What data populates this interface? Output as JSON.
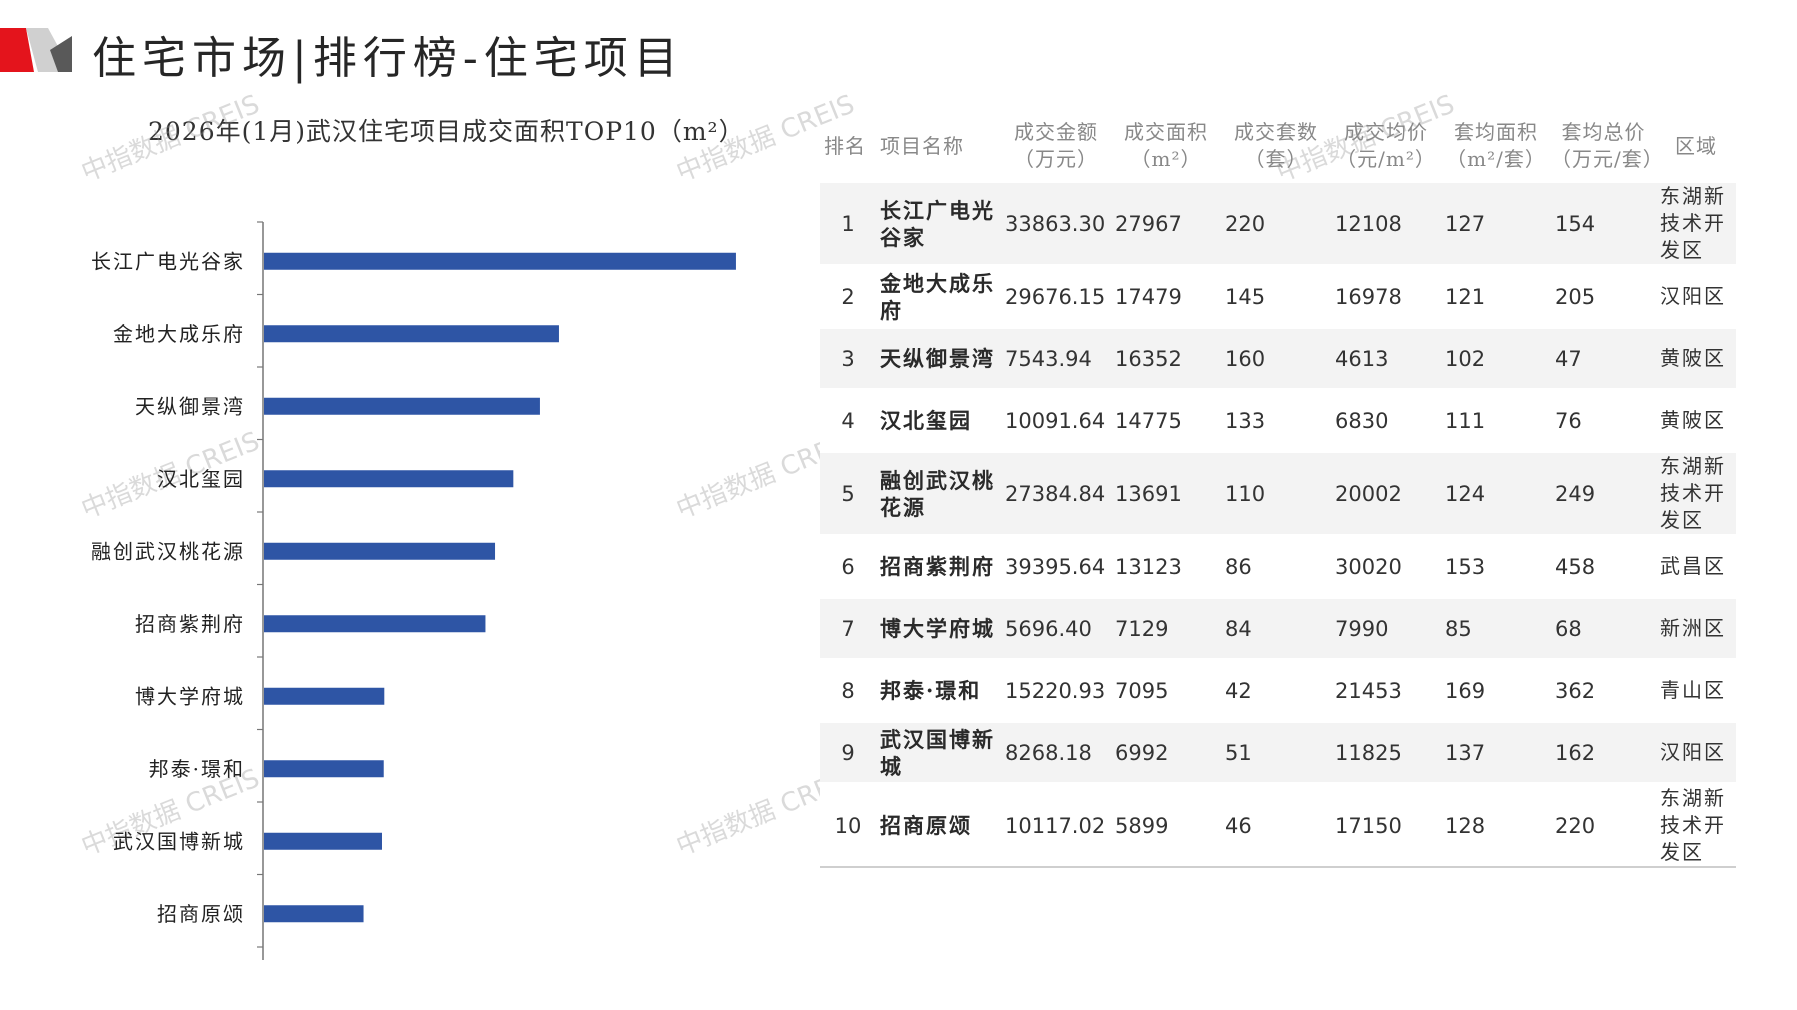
{
  "header": {
    "title": "住宅市场|排行榜-住宅项目",
    "logo_colors": [
      "#e4141c",
      "#9b9b9b",
      "#595959"
    ]
  },
  "watermark": {
    "text": "中指数据 CREIS"
  },
  "chart_data": {
    "type": "bar",
    "orientation": "horizontal",
    "title": "2026年(1月)武汉住宅项目成交面积TOP10（m²）",
    "categories": [
      "长江广电光谷家",
      "金地大成乐府",
      "天纵御景湾",
      "汉北玺园",
      "融创武汉桃花源",
      "招商紫荆府",
      "博大学府城",
      "邦泰·璟和",
      "武汉国博新城",
      "招商原颂"
    ],
    "values": [
      27967,
      17479,
      16352,
      14775,
      13691,
      13123,
      7129,
      7095,
      6992,
      5899
    ],
    "xlim": [
      0,
      32000
    ],
    "grid": false,
    "bar_color": "#2e55a5"
  },
  "table": {
    "headers": {
      "rank": "排名",
      "name": "项目名称",
      "amount": [
        "成交金额",
        "（万元）"
      ],
      "area": [
        "成交面积",
        "（m²）"
      ],
      "units": [
        "成交套数",
        "（套）"
      ],
      "price": [
        "成交均价",
        "（元/m²）"
      ],
      "avg_area": [
        "套均面积",
        "（m²/套）"
      ],
      "avg_total": [
        "套均总价",
        "（万元/套）"
      ],
      "district": "区域"
    },
    "rows": [
      {
        "rank": "1",
        "name": "长江广电光谷家",
        "amount": "33863.30",
        "area": "27967",
        "units": "220",
        "price": "12108",
        "avg_area": "127",
        "avg_total": "154",
        "district": "东湖新技术开发区"
      },
      {
        "rank": "2",
        "name": "金地大成乐府",
        "amount": "29676.15",
        "area": "17479",
        "units": "145",
        "price": "16978",
        "avg_area": "121",
        "avg_total": "205",
        "district": "汉阳区"
      },
      {
        "rank": "3",
        "name": "天纵御景湾",
        "amount": "7543.94",
        "area": "16352",
        "units": "160",
        "price": "4613",
        "avg_area": "102",
        "avg_total": "47",
        "district": "黄陂区"
      },
      {
        "rank": "4",
        "name": "汉北玺园",
        "amount": "10091.64",
        "area": "14775",
        "units": "133",
        "price": "6830",
        "avg_area": "111",
        "avg_total": "76",
        "district": "黄陂区"
      },
      {
        "rank": "5",
        "name": "融创武汉桃花源",
        "amount": "27384.84",
        "area": "13691",
        "units": "110",
        "price": "20002",
        "avg_area": "124",
        "avg_total": "249",
        "district": "东湖新技术开发区"
      },
      {
        "rank": "6",
        "name": "招商紫荆府",
        "amount": "39395.64",
        "area": "13123",
        "units": "86",
        "price": "30020",
        "avg_area": "153",
        "avg_total": "458",
        "district": "武昌区"
      },
      {
        "rank": "7",
        "name": "博大学府城",
        "amount": "5696.40",
        "area": "7129",
        "units": "84",
        "price": "7990",
        "avg_area": "85",
        "avg_total": "68",
        "district": "新洲区"
      },
      {
        "rank": "8",
        "name": "邦泰·璟和",
        "amount": "15220.93",
        "area": "7095",
        "units": "42",
        "price": "21453",
        "avg_area": "169",
        "avg_total": "362",
        "district": "青山区"
      },
      {
        "rank": "9",
        "name": "武汉国博新城",
        "amount": "8268.18",
        "area": "6992",
        "units": "51",
        "price": "11825",
        "avg_area": "137",
        "avg_total": "162",
        "district": "汉阳区"
      },
      {
        "rank": "10",
        "name": "招商原颂",
        "amount": "10117.02",
        "area": "5899",
        "units": "46",
        "price": "17150",
        "avg_area": "128",
        "avg_total": "220",
        "district": "东湖新技术开发区"
      }
    ]
  }
}
